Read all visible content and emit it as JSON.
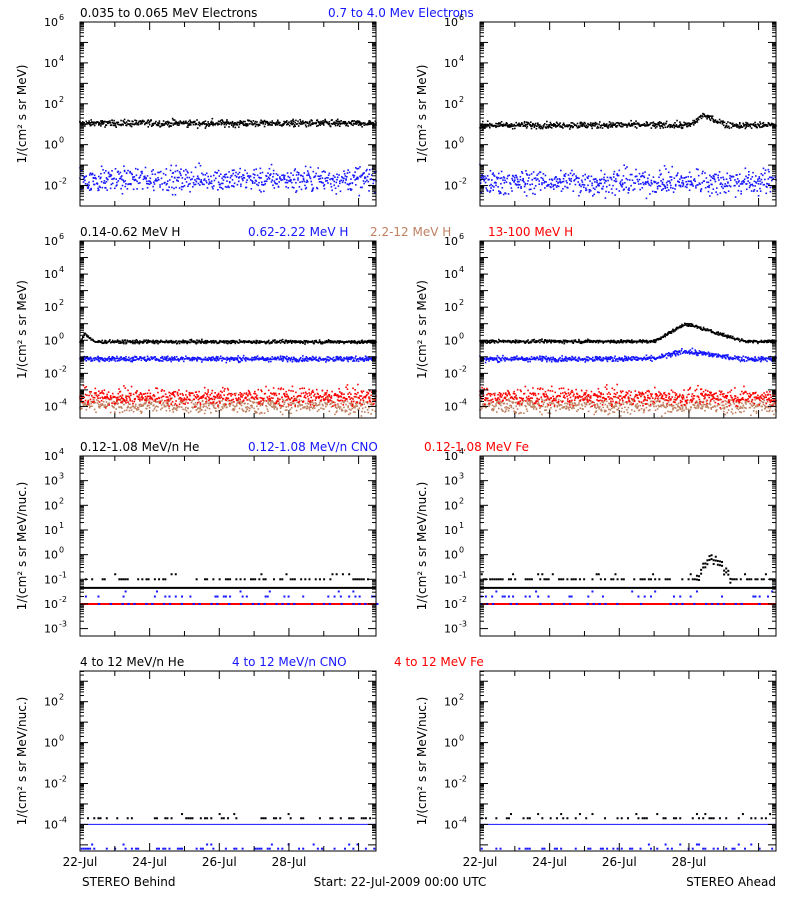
{
  "colors": {
    "black": "#000000",
    "blue": "#1515ff",
    "red": "#ff0000",
    "tan": "#c08060",
    "axis": "#000000"
  },
  "footer": {
    "left": "STEREO Behind",
    "center": "Start: 22-Jul-2009 00:00 UTC",
    "right": "STEREO Ahead"
  },
  "x_axis": {
    "tick_labels": [
      "22-Jul",
      "24-Jul",
      "26-Jul",
      "28-Jul"
    ],
    "range_days": [
      0,
      8.5
    ]
  },
  "chart_data": [
    {
      "type": "scatter",
      "id": "electrons",
      "ylabel": "1/(cm² s sr MeV)",
      "yscale": "log",
      "ylim_exp": [
        -3,
        6
      ],
      "y_tick_exps": [
        -2,
        0,
        2,
        4,
        6
      ],
      "legend": [
        {
          "text": "0.035 to 0.065 MeV Electrons",
          "color": "#000000"
        },
        {
          "text": "0.7 to 4.0 Mev Electrons",
          "color": "#1515ff"
        }
      ],
      "panels": [
        {
          "name": "behind",
          "series": [
            {
              "name": "0.035 to 0.065 MeV Electrons",
              "color": "#000000",
              "base": 11,
              "scatter": 0.08,
              "bumps": []
            },
            {
              "name": "0.7 to 4.0 Mev Electrons",
              "color": "#1515ff",
              "base": 0.02,
              "scatter": 0.3,
              "bumps": []
            }
          ]
        },
        {
          "name": "ahead",
          "series": [
            {
              "name": "0.035 to 0.065 MeV Electrons",
              "color": "#000000",
              "base": 9,
              "scatter": 0.08,
              "bumps": [
                {
                  "t0": 6.05,
                  "t1": 7.1,
                  "peak": 28
                }
              ]
            },
            {
              "name": "0.7 to 4.0 Mev Electrons",
              "color": "#1515ff",
              "base": 0.015,
              "scatter": 0.3,
              "bumps": []
            }
          ]
        }
      ]
    },
    {
      "type": "scatter",
      "id": "protons",
      "ylabel": "1/(cm² s sr MeV)",
      "yscale": "log",
      "ylim_exp": [
        -4.7,
        6
      ],
      "y_tick_exps": [
        -4,
        -2,
        0,
        2,
        4,
        6
      ],
      "legend": [
        {
          "text": "0.14-0.62 MeV H",
          "color": "#000000"
        },
        {
          "text": "0.62-2.22 MeV H",
          "color": "#1515ff"
        },
        {
          "text": "2.2-12 MeV H",
          "color": "#c08060"
        },
        {
          "text": "13-100 MeV H",
          "color": "#ff0000"
        }
      ],
      "panels": [
        {
          "name": "behind",
          "series": [
            {
              "name": "0.14-0.62 MeV H",
              "color": "#000000",
              "base": 0.8,
              "scatter": 0.05,
              "bumps": [
                {
                  "t0": 0,
                  "t1": 0.4,
                  "peak": 2.5
                }
              ]
            },
            {
              "name": "0.62-2.22 MeV H",
              "color": "#1515ff",
              "base": 0.075,
              "scatter": 0.08,
              "bumps": []
            },
            {
              "name": "2.2-12 MeV H",
              "color": "#c08060",
              "base": 0.00012,
              "scatter": 0.25,
              "bumps": []
            },
            {
              "name": "13-100 MeV H",
              "color": "#ff0000",
              "base": 0.00038,
              "scatter": 0.25,
              "bumps": []
            }
          ]
        },
        {
          "name": "ahead",
          "series": [
            {
              "name": "0.14-0.62 MeV H",
              "color": "#000000",
              "base": 0.85,
              "scatter": 0.05,
              "bumps": [
                {
                  "t0": 5.0,
                  "t1": 7.6,
                  "peak": 10
                }
              ]
            },
            {
              "name": "0.62-2.22 MeV H",
              "color": "#1515ff",
              "base": 0.075,
              "scatter": 0.08,
              "bumps": [
                {
                  "t0": 5.0,
                  "t1": 7.5,
                  "peak": 0.22
                }
              ]
            },
            {
              "name": "2.2-12 MeV H",
              "color": "#c08060",
              "base": 0.00012,
              "scatter": 0.25,
              "bumps": []
            },
            {
              "name": "13-100 MeV H",
              "color": "#ff0000",
              "base": 0.00038,
              "scatter": 0.25,
              "bumps": []
            }
          ]
        }
      ]
    },
    {
      "type": "scatter",
      "id": "heavy-low",
      "ylabel": "1/(cm² s sr MeV/nuc.)",
      "yscale": "log",
      "ylim_exp": [
        -3.3,
        4
      ],
      "y_tick_exps": [
        -3,
        -2,
        -1,
        0,
        1,
        2,
        3,
        4
      ],
      "legend": [
        {
          "text": "0.12-1.08 MeV/n He",
          "color": "#000000"
        },
        {
          "text": "0.12-1.08 MeV/n CNO",
          "color": "#1515ff"
        },
        {
          "text": "0.12-1.08 MeV Fe",
          "color": "#ff0000"
        }
      ],
      "panels": [
        {
          "name": "behind",
          "series": [
            {
              "name": "0.12-1.08 MeV/n He",
              "color": "#000000",
              "kind": "line",
              "base": 0.045
            },
            {
              "name": "0.12-1.08 MeV/n He",
              "color": "#000000",
              "kind": "sparse",
              "base": 0.1,
              "density": 0.5
            },
            {
              "name": "0.12-1.08 MeV/n CNO",
              "color": "#1515ff",
              "kind": "sparse",
              "base": 0.02,
              "density": 0.25
            },
            {
              "name": "0.12-1.08 MeV Fe",
              "color": "#ff0000",
              "kind": "line",
              "base": 0.01
            },
            {
              "name": "0.12-1.08 MeV/n CNO",
              "color": "#1515ff",
              "kind": "dashes",
              "base": 0.01
            }
          ]
        },
        {
          "name": "ahead",
          "series": [
            {
              "name": "0.12-1.08 MeV/n He",
              "color": "#000000",
              "kind": "line",
              "base": 0.045
            },
            {
              "name": "0.12-1.08 MeV/n He",
              "color": "#000000",
              "kind": "sparse",
              "base": 0.1,
              "density": 0.55,
              "bump": {
                "t0": 6.2,
                "t1": 7.2,
                "peak": 0.8
              }
            },
            {
              "name": "0.12-1.08 MeV/n CNO",
              "color": "#1515ff",
              "kind": "sparse",
              "base": 0.02,
              "density": 0.25
            },
            {
              "name": "0.12-1.08 MeV Fe",
              "color": "#ff0000",
              "kind": "line",
              "base": 0.01
            },
            {
              "name": "0.12-1.08 MeV/n CNO",
              "color": "#1515ff",
              "kind": "dashes",
              "base": 0.01
            }
          ]
        }
      ]
    },
    {
      "type": "scatter",
      "id": "heavy-high",
      "ylabel": "1/(cm² s sr MeV/nuc.)",
      "yscale": "log",
      "ylim_exp": [
        -5.3,
        3.5
      ],
      "y_tick_exps": [
        -4,
        -2,
        0,
        2
      ],
      "legend": [
        {
          "text": "4 to 12 MeV/n He",
          "color": "#000000"
        },
        {
          "text": "4 to 12 MeV/n CNO",
          "color": "#1515ff"
        },
        {
          "text": "4 to 12 MeV Fe",
          "color": "#ff0000"
        }
      ],
      "panels": [
        {
          "name": "behind",
          "series": [
            {
              "name": "4 to 12 MeV/n CNO",
              "color": "#1515ff",
              "kind": "line",
              "base": 0.0001
            },
            {
              "name": "4 to 12 MeV/n He",
              "color": "#000000",
              "kind": "sparse",
              "base": 0.0002,
              "density": 0.3
            },
            {
              "name": "4 to 12 MeV/n CNO",
              "color": "#1515ff",
              "kind": "sparse",
              "base": 6.5e-06,
              "density": 0.3
            }
          ]
        },
        {
          "name": "ahead",
          "series": [
            {
              "name": "4 to 12 MeV/n CNO",
              "color": "#1515ff",
              "kind": "line",
              "base": 0.0001
            },
            {
              "name": "4 to 12 MeV/n He",
              "color": "#000000",
              "kind": "sparse",
              "base": 0.0002,
              "density": 0.3
            },
            {
              "name": "4 to 12 MeV/n CNO",
              "color": "#1515ff",
              "kind": "sparse",
              "base": 6.5e-06,
              "density": 0.3
            }
          ]
        }
      ]
    }
  ]
}
